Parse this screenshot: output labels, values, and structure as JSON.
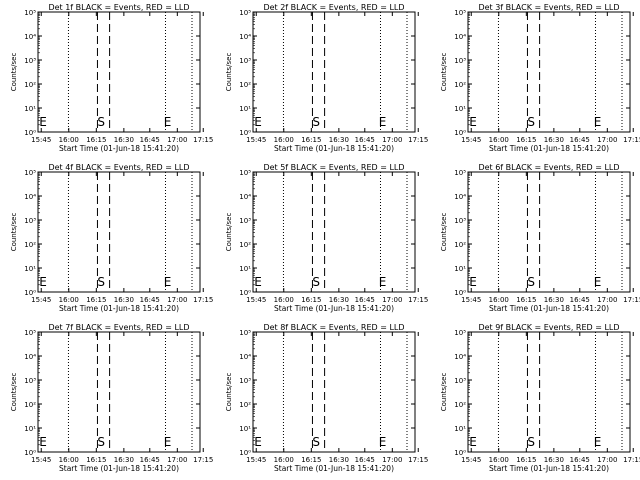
{
  "chart_data": [
    {
      "type": "line",
      "title": "Det 1f BLACK = Events, RED = LLD",
      "xlabel": "Start Time (01-Jun-18 15:41:20)",
      "ylabel": "Counts/sec",
      "x_ticks": [
        "15:45",
        "16:00",
        "16:15",
        "16:30",
        "16:45",
        "17:00",
        "17:15"
      ],
      "y_ticks": [
        "10⁰",
        "10¹",
        "10²",
        "10³",
        "10⁴",
        "10⁵"
      ],
      "scale": "log",
      "markers": [
        "E",
        "S",
        "E"
      ],
      "grid": false,
      "series": []
    },
    {
      "type": "line",
      "title": "Det 2f BLACK = Events, RED = LLD",
      "xlabel": "Start Time (01-Jun-18 15:41:20)",
      "ylabel": "Counts/sec",
      "x_ticks": [
        "15:45",
        "16:00",
        "16:15",
        "16:30",
        "16:45",
        "17:00",
        "17:15"
      ],
      "y_ticks": [
        "10⁰",
        "10¹",
        "10²",
        "10³",
        "10⁴",
        "10⁵"
      ],
      "scale": "log",
      "markers": [
        "E",
        "S",
        "E"
      ],
      "grid": false,
      "series": []
    },
    {
      "type": "line",
      "title": "Det 3f BLACK = Events, RED = LLD",
      "xlabel": "Start Time (01-Jun-18 15:41:20)",
      "ylabel": "Counts/sec",
      "x_ticks": [
        "15:45",
        "16:00",
        "16:15",
        "16:30",
        "16:45",
        "17:00",
        "17:15"
      ],
      "y_ticks": [
        "10⁰",
        "10¹",
        "10²",
        "10³",
        "10⁴",
        "10⁵"
      ],
      "scale": "log",
      "markers": [
        "E",
        "S",
        "E"
      ],
      "grid": false,
      "series": []
    },
    {
      "type": "line",
      "title": "Det 4f BLACK = Events, RED = LLD",
      "xlabel": "Start Time (01-Jun-18 15:41:20)",
      "ylabel": "Counts/sec",
      "x_ticks": [
        "15:45",
        "16:00",
        "16:15",
        "16:30",
        "16:45",
        "17:00",
        "17:15"
      ],
      "y_ticks": [
        "10⁰",
        "10¹",
        "10²",
        "10³",
        "10⁴",
        "10⁵"
      ],
      "scale": "log",
      "markers": [
        "E",
        "S",
        "E"
      ],
      "grid": false,
      "series": []
    },
    {
      "type": "line",
      "title": "Det 5f BLACK = Events, RED = LLD",
      "xlabel": "Start Time (01-Jun-18 15:41:20)",
      "ylabel": "Counts/sec",
      "x_ticks": [
        "15:45",
        "16:00",
        "16:15",
        "16:30",
        "16:45",
        "17:00",
        "17:15"
      ],
      "y_ticks": [
        "10⁰",
        "10¹",
        "10²",
        "10³",
        "10⁴",
        "10⁵"
      ],
      "scale": "log",
      "markers": [
        "E",
        "S",
        "E"
      ],
      "grid": false,
      "series": []
    },
    {
      "type": "line",
      "title": "Det 6f BLACK = Events, RED = LLD",
      "xlabel": "Start Time (01-Jun-18 15:41:20)",
      "ylabel": "Counts/sec",
      "x_ticks": [
        "15:45",
        "16:00",
        "16:15",
        "16:30",
        "16:45",
        "17:00",
        "17:15"
      ],
      "y_ticks": [
        "10⁰",
        "10¹",
        "10²",
        "10³",
        "10⁴",
        "10⁵"
      ],
      "scale": "log",
      "markers": [
        "E",
        "S",
        "E"
      ],
      "grid": false,
      "series": []
    },
    {
      "type": "line",
      "title": "Det 7f BLACK = Events, RED = LLD",
      "xlabel": "Start Time (01-Jun-18 15:41:20)",
      "ylabel": "Counts/sec",
      "x_ticks": [
        "15:45",
        "16:00",
        "16:15",
        "16:30",
        "16:45",
        "17:00",
        "17:15"
      ],
      "y_ticks": [
        "10⁰",
        "10¹",
        "10²",
        "10³",
        "10⁴",
        "10⁵"
      ],
      "scale": "log",
      "markers": [
        "E",
        "S",
        "E"
      ],
      "grid": false,
      "series": []
    },
    {
      "type": "line",
      "title": "Det 8f BLACK = Events, RED = LLD",
      "xlabel": "Start Time (01-Jun-18 15:41:20)",
      "ylabel": "Counts/sec",
      "x_ticks": [
        "15:45",
        "16:00",
        "16:15",
        "16:30",
        "16:45",
        "17:00",
        "17:15"
      ],
      "y_ticks": [
        "10⁰",
        "10¹",
        "10²",
        "10³",
        "10⁴",
        "10⁵"
      ],
      "scale": "log",
      "markers": [
        "E",
        "S",
        "E"
      ],
      "grid": false,
      "series": []
    },
    {
      "type": "line",
      "title": "Det 9f BLACK = Events, RED = LLD",
      "xlabel": "Start Time (01-Jun-18 15:41:20)",
      "ylabel": "Counts/sec",
      "x_ticks": [
        "15:45",
        "16:00",
        "16:15",
        "16:30",
        "16:45",
        "17:00",
        "17:15"
      ],
      "y_ticks": [
        "10⁰",
        "10¹",
        "10²",
        "10³",
        "10⁴",
        "10⁵"
      ],
      "scale": "log",
      "markers": [
        "E",
        "S",
        "E"
      ],
      "grid": false,
      "series": []
    }
  ]
}
